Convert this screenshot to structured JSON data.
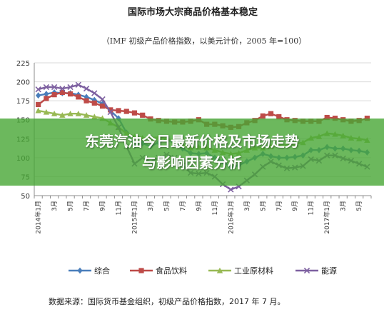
{
  "banner": {
    "line1": "东莞汽油今日最新价格及市场走势",
    "line2": "与影响因素分析"
  },
  "source_note": "数据来源：国际货币基金组织，初级产品价格指数，2017 年 7 月。",
  "colors": {
    "综合": "#4a7ebb",
    "食品饮料": "#be4b48",
    "工业原材料": "#98b954",
    "能源": "#7d60a0",
    "banner": "#47a634"
  },
  "chart_data": {
    "type": "line",
    "title": "国际市场大宗商品价格基本稳定",
    "subtitle": "（IMF 初级产品价格指数，以美元计价，2005 年=100）",
    "ylim": [
      50,
      225
    ],
    "yticks": [
      50,
      75,
      100,
      125,
      150,
      175,
      200,
      225
    ],
    "grid": true,
    "legend_position": "bottom",
    "x": [
      "2014年1月",
      "2014年2月",
      "2014年3月",
      "2014年4月",
      "2014年5月",
      "2014年6月",
      "2014年7月",
      "2014年8月",
      "2014年9月",
      "2014年10月",
      "2014年11月",
      "2014年12月",
      "2015年1月",
      "2015年2月",
      "2015年3月",
      "2015年4月",
      "2015年5月",
      "2015年6月",
      "2015年7月",
      "2015年8月",
      "2015年9月",
      "2015年10月",
      "2015年11月",
      "2015年12月",
      "2016年1月",
      "2016年2月",
      "2016年3月",
      "2016年4月",
      "2016年5月",
      "2016年6月",
      "2016年7月",
      "2016年8月",
      "2016年9月",
      "2016年10月",
      "2016年11月",
      "2016年12月",
      "2017年1月",
      "2017年2月",
      "2017年3月",
      "2017年4月",
      "2017年5月",
      "2017年6月"
    ],
    "x_tick_labels": [
      "2014年1月",
      "3月",
      "5月",
      "7月",
      "9月",
      "11月",
      "2015年1月",
      "3月",
      "5月",
      "7月",
      "9月",
      "11月",
      "2016年1月",
      "3月",
      "5月",
      "7月",
      "9月",
      "11月",
      "2017年1月",
      "3月",
      "5月"
    ],
    "series": [
      {
        "name": "综合",
        "marker": "diamond",
        "values": [
          182,
          184,
          186,
          185,
          185,
          183,
          180,
          176,
          171,
          162,
          152,
          133,
          116,
          119,
          115,
          120,
          124,
          119,
          112,
          106,
          105,
          106,
          100,
          95,
          87,
          90,
          95,
          100,
          105,
          102,
          100,
          100,
          101,
          103,
          110,
          110,
          114,
          112,
          112,
          110,
          109,
          107
        ]
      },
      {
        "name": "食品饮料",
        "marker": "square",
        "values": [
          170,
          178,
          183,
          186,
          184,
          180,
          175,
          172,
          168,
          163,
          162,
          161,
          159,
          156,
          151,
          149,
          148,
          147,
          147,
          148,
          150,
          144,
          144,
          142,
          140,
          141,
          146,
          149,
          155,
          158,
          154,
          150,
          149,
          148,
          148,
          148,
          153,
          152,
          150,
          148,
          149,
          152
        ]
      },
      {
        "name": "工业原材料",
        "marker": "triangle",
        "values": [
          162,
          160,
          158,
          156,
          158,
          158,
          156,
          154,
          152,
          146,
          140,
          132,
          128,
          126,
          126,
          127,
          125,
          122,
          117,
          113,
          114,
          113,
          110,
          107,
          105,
          106,
          110,
          113,
          113,
          115,
          117,
          117,
          118,
          120,
          126,
          128,
          132,
          131,
          129,
          126,
          125,
          123
        ]
      },
      {
        "name": "能源",
        "marker": "x",
        "values": [
          190,
          193,
          193,
          191,
          193,
          196,
          191,
          185,
          177,
          160,
          140,
          115,
          92,
          100,
          94,
          100,
          104,
          100,
          90,
          80,
          79,
          80,
          75,
          65,
          58,
          62,
          70,
          78,
          88,
          95,
          90,
          86,
          87,
          89,
          98,
          96,
          103,
          103,
          99,
          96,
          92,
          88
        ]
      }
    ]
  }
}
